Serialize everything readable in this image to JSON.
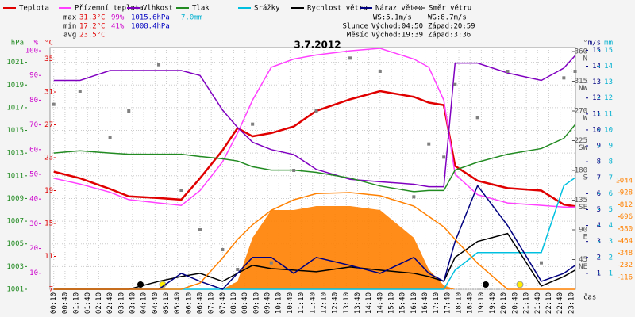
{
  "chart_data": {
    "type": "line",
    "title": "3.7.2012",
    "x_label": "čas",
    "stats": [
      [
        "max",
        "31.3°C",
        "99%",
        "1015.6hPa",
        "7.0mm"
      ],
      [
        "min",
        "17.2°C",
        "41%",
        "1008.4hPa"
      ],
      [
        "avg",
        "23.5°C"
      ]
    ],
    "wind_stats": [
      "WS:5.1m/s",
      "WG:8.7m/s"
    ],
    "sun": [
      "Slunce",
      "Východ:04:50",
      "Západ:20:59"
    ],
    "moon": [
      "Měsíc",
      "Východ:19:39",
      "Západ:3:36"
    ],
    "xlim": [
      0,
      1401
    ],
    "xticks": [
      {
        "value": 10,
        "label": "00:10"
      },
      {
        "value": 40,
        "label": "00:40"
      },
      {
        "value": 70,
        "label": "01:10"
      },
      {
        "value": 100,
        "label": "01:40"
      },
      {
        "value": 130,
        "label": "02:10"
      },
      {
        "value": 160,
        "label": "02:40"
      },
      {
        "value": 190,
        "label": "03:10"
      },
      {
        "value": 220,
        "label": "03:40"
      },
      {
        "value": 250,
        "label": "04:10"
      },
      {
        "value": 280,
        "label": "04:40"
      },
      {
        "value": 310,
        "label": "05:10"
      },
      {
        "value": 340,
        "label": "05:40"
      },
      {
        "value": 370,
        "label": "06:10"
      },
      {
        "value": 400,
        "label": "06:40"
      },
      {
        "value": 430,
        "label": "07:10"
      },
      {
        "value": 460,
        "label": "07:40"
      },
      {
        "value": 490,
        "label": "08:10"
      },
      {
        "value": 520,
        "label": "08:40"
      },
      {
        "value": 550,
        "label": "09:10"
      },
      {
        "value": 580,
        "label": "09:40"
      },
      {
        "value": 610,
        "label": "10:10"
      },
      {
        "value": 640,
        "label": "10:40"
      },
      {
        "value": 670,
        "label": "11:10"
      },
      {
        "value": 700,
        "label": "11:40"
      },
      {
        "value": 730,
        "label": "12:10"
      },
      {
        "value": 760,
        "label": "12:40"
      },
      {
        "value": 790,
        "label": "13:10"
      },
      {
        "value": 820,
        "label": "13:40"
      },
      {
        "value": 850,
        "label": "14:10"
      },
      {
        "value": 880,
        "label": "14:40"
      },
      {
        "value": 910,
        "label": "15:10"
      },
      {
        "value": 940,
        "label": "15:40"
      },
      {
        "value": 970,
        "label": "16:10"
      },
      {
        "value": 1000,
        "label": "16:40"
      },
      {
        "value": 1030,
        "label": "17:10"
      },
      {
        "value": 1060,
        "label": "17:40"
      },
      {
        "value": 1090,
        "label": "18:10"
      },
      {
        "value": 1120,
        "label": "18:40"
      },
      {
        "value": 1150,
        "label": "19:10"
      },
      {
        "value": 1180,
        "label": "19:40"
      },
      {
        "value": 1210,
        "label": "20:10"
      },
      {
        "value": 1240,
        "label": "20:40"
      },
      {
        "value": 1270,
        "label": "21:10"
      },
      {
        "value": 1300,
        "label": "21:40"
      },
      {
        "value": 1330,
        "label": "22:10"
      },
      {
        "value": 1360,
        "label": "22:40"
      },
      {
        "value": 1390,
        "label": "23:10"
      }
    ],
    "axes": [
      {
        "unit": "hPa",
        "color": "#228b22",
        "lim": [
          1001,
          1022.3
        ],
        "ticks": [
          1001,
          1003,
          1005,
          1007,
          1009,
          1011,
          1013,
          1015,
          1017,
          1019,
          1021
        ]
      },
      {
        "unit": "%",
        "color": "#cc00cc",
        "lim": [
          3.5,
          101.3
        ],
        "ticks": [
          10,
          20,
          30,
          40,
          50,
          60,
          70,
          80,
          90,
          100
        ]
      },
      {
        "unit": "°C",
        "color": "#e00000",
        "lim": [
          7,
          36.4
        ],
        "ticks": [
          7,
          11,
          15,
          19,
          23,
          27,
          31,
          35
        ]
      },
      {
        "unit": "°",
        "color": "#555555",
        "lim": [
          0,
          366
        ],
        "ticks": [
          {
            "value": 45,
            "label": "45",
            "sub": "NE"
          },
          {
            "value": 90,
            "label": "90",
            "sub": "E"
          },
          {
            "value": 135,
            "label": "135",
            "sub": "SE"
          },
          {
            "value": 180,
            "label": "180",
            "sub": "S"
          },
          {
            "value": 225,
            "label": "225",
            "sub": "SW"
          },
          {
            "value": 270,
            "label": "270",
            "sub": "W"
          },
          {
            "value": 315,
            "label": "315",
            "sub": "NW"
          },
          {
            "value": 360,
            "label": "360",
            "sub": "N"
          }
        ]
      },
      {
        "unit": "m/s",
        "color": "#000080",
        "lim": [
          0,
          15.17
        ],
        "ticks": [
          1,
          2,
          3,
          4,
          5,
          6,
          7,
          8,
          9,
          10,
          11,
          12,
          13,
          14,
          15
        ]
      },
      {
        "unit": "mm",
        "color": "#00b0d0",
        "lim": [
          0,
          15.17
        ],
        "ticks": [
          1,
          2,
          3,
          4,
          5,
          6,
          7,
          8,
          9,
          10,
          11,
          12,
          13,
          14,
          15
        ]
      },
      {
        "color": "#ff8000",
        "lim": [
          0,
          2324
        ],
        "ticks": [
          116,
          232,
          348,
          464,
          580,
          696,
          812,
          928,
          1044
        ]
      }
    ],
    "x": [
      10,
      80,
      160,
      210,
      290,
      350,
      400,
      460,
      500,
      540,
      590,
      650,
      710,
      800,
      880,
      970,
      1010,
      1050,
      1080,
      1140,
      1220,
      1310,
      1370,
      1400
    ],
    "series": [
      {
        "name": "Teplota",
        "color": "#e00000",
        "axis": 2,
        "kind": "line",
        "values": [
          21.3,
          20.5,
          19.2,
          18.3,
          18.1,
          17.9,
          20.5,
          23.9,
          26.6,
          25.6,
          26.0,
          26.8,
          28.7,
          30.1,
          31.1,
          30.4,
          29.7,
          29.4,
          22.0,
          20.2,
          19.3,
          19.0,
          17.3,
          17.1
        ]
      },
      {
        "name": "Přízemní teplota",
        "color": "#ff40ff",
        "axis": 2,
        "kind": "line",
        "values": [
          20.5,
          19.8,
          18.8,
          17.9,
          17.5,
          17.2,
          19.0,
          22.5,
          26.0,
          30.0,
          34.0,
          35.0,
          35.5,
          36.0,
          36.3,
          35.0,
          34.0,
          30.0,
          21.0,
          18.5,
          17.5,
          17.2,
          17.0,
          17.0
        ]
      },
      {
        "name": "Vlhkost",
        "color": "#8000c0",
        "axis": 1,
        "kind": "line",
        "values": [
          88,
          88,
          92,
          92,
          92,
          92,
          90,
          76,
          69,
          63,
          60,
          58,
          52,
          48,
          47,
          46,
          45,
          45,
          95,
          95,
          91,
          88,
          93,
          98
        ]
      },
      {
        "name": "Tlak",
        "color": "#228b22",
        "axis": 0,
        "kind": "line",
        "values": [
          1013.0,
          1013.2,
          1013.0,
          1012.9,
          1012.9,
          1012.9,
          1012.7,
          1012.5,
          1012.3,
          1011.8,
          1011.5,
          1011.5,
          1011.3,
          1010.8,
          1010.1,
          1009.6,
          1009.7,
          1009.7,
          1011.5,
          1012.2,
          1012.9,
          1013.4,
          1014.3,
          1015.5
        ]
      },
      {
        "name": "Srážky",
        "color": "#00c0e0",
        "axis": 5,
        "kind": "line",
        "values": [
          0,
          0,
          0,
          0,
          0,
          0,
          0,
          0,
          0,
          0,
          0,
          0,
          0,
          0,
          0,
          0,
          0,
          0,
          1.2,
          2.3,
          2.3,
          2.3,
          6.5,
          7.0
        ]
      },
      {
        "name": "Rychlost větru",
        "color": "#000000",
        "axis": 4,
        "kind": "line",
        "values": [
          0,
          0,
          0,
          0,
          0.5,
          0.8,
          1,
          0.5,
          1,
          1.5,
          1.3,
          1.2,
          1.1,
          1.4,
          1.2,
          1,
          0.8,
          0.5,
          2,
          3,
          3.5,
          0.2,
          0.8,
          1.2
        ]
      },
      {
        "name": "Náraz větru",
        "color": "#000080",
        "axis": 4,
        "kind": "line",
        "values": [
          0,
          0,
          0,
          0,
          0,
          1,
          0.5,
          0,
          1,
          2,
          2,
          1,
          2,
          1.5,
          1,
          2,
          1,
          0.5,
          3,
          6.5,
          4,
          0.5,
          1,
          1.5
        ]
      },
      {
        "name": "Směr větru",
        "color": "#808080",
        "axis": 3,
        "kind": "dots",
        "values": [
          280,
          300,
          230,
          270,
          340,
          150,
          90,
          60,
          30,
          250,
          40,
          180,
          270,
          350,
          330,
          140,
          220,
          200,
          310,
          260,
          330,
          40,
          320,
          330
        ]
      },
      {
        "color": "#ff8000",
        "axis": 6,
        "kind": "area",
        "values": [
          0,
          0,
          0,
          0,
          0,
          0,
          0,
          0,
          76,
          495,
          762,
          762,
          800,
          800,
          762,
          495,
          190,
          38,
          0,
          0,
          0,
          0,
          0,
          0
        ]
      },
      {
        "color": "#ff8000",
        "axis": 6,
        "kind": "line",
        "values": [
          0,
          0,
          0,
          0,
          0,
          0,
          60,
          300,
          480,
          620,
          760,
          860,
          920,
          930,
          900,
          800,
          700,
          600,
          480,
          250,
          0,
          0,
          0,
          0
        ]
      }
    ]
  }
}
